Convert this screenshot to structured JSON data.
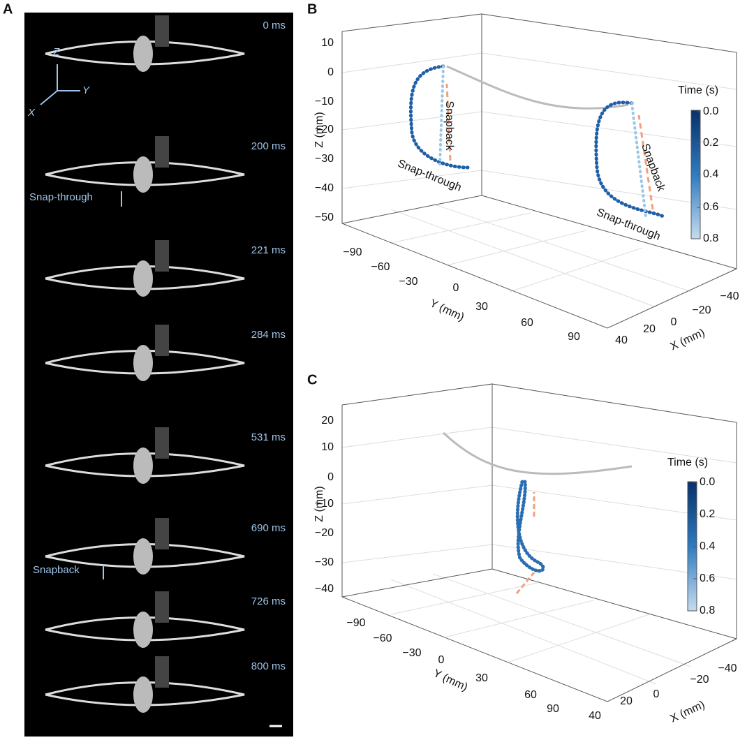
{
  "panel_a": {
    "label": "A",
    "axes": [
      "Z",
      "Y",
      "X"
    ],
    "frames": [
      "0 ms",
      "200 ms",
      "221 ms",
      "284 ms",
      "531 ms",
      "690 ms",
      "726 ms",
      "800 ms"
    ],
    "annotations": [
      "Snap-through",
      "Snapback"
    ]
  },
  "panel_b": {
    "label": "B",
    "z_axis": {
      "title": "Z (mm)",
      "ticks": [
        "10",
        "0",
        "−10",
        "−20",
        "−30",
        "−40",
        "−50"
      ]
    },
    "y_axis": {
      "title": "Y (mm)",
      "ticks": [
        "−90",
        "−60",
        "−30",
        "0",
        "30",
        "60",
        "90"
      ]
    },
    "x_axis": {
      "title": "X (mm)",
      "ticks": [
        "−40",
        "−20",
        "0",
        "20",
        "40"
      ]
    },
    "colorbar": {
      "title": "Time (s)",
      "ticks": [
        "0.0",
        "0.2",
        "0.4",
        "0.6",
        "0.8"
      ]
    },
    "annotations": [
      "Snapback",
      "Snap-through",
      "Snapback",
      "Snap-through"
    ]
  },
  "panel_c": {
    "label": "C",
    "z_axis": {
      "title": "Z (mm)",
      "ticks": [
        "20",
        "10",
        "0",
        "−10",
        "−20",
        "−30",
        "−40"
      ]
    },
    "y_axis": {
      "title": "Y (mm)",
      "ticks": [
        "−90",
        "−60",
        "−30",
        "0",
        "30",
        "60",
        "90"
      ]
    },
    "x_axis": {
      "title": "X (mm)",
      "ticks": [
        "−40",
        "−20",
        "0",
        "20",
        "40"
      ]
    },
    "colorbar": {
      "title": "Time (s)",
      "ticks": [
        "0.0",
        "0.2",
        "0.4",
        "0.6",
        "0.8"
      ]
    }
  }
}
